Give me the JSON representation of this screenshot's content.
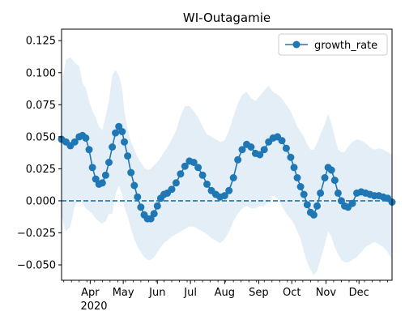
{
  "chart_data": {
    "type": "line",
    "title": "WI-Outagamie",
    "xlabel": "",
    "ylabel": "",
    "x_range": [
      "2020-03-06",
      "2020-12-31"
    ],
    "ylim": [
      -0.062,
      0.134
    ],
    "y_ticks": [
      -0.05,
      -0.025,
      0.0,
      0.025,
      0.05,
      0.075,
      0.1,
      0.125
    ],
    "y_tick_labels": [
      "−0.050",
      "−0.025",
      "0.000",
      "0.025",
      "0.050",
      "0.075",
      "0.100",
      "0.125"
    ],
    "x_ticks": [
      {
        "date": "2020-04-01",
        "label": "Apr"
      },
      {
        "date": "2020-05-01",
        "label": "May"
      },
      {
        "date": "2020-06-01",
        "label": "Jun"
      },
      {
        "date": "2020-07-01",
        "label": "Jul"
      },
      {
        "date": "2020-08-01",
        "label": "Aug"
      },
      {
        "date": "2020-09-01",
        "label": "Sep"
      },
      {
        "date": "2020-10-01",
        "label": "Oct"
      },
      {
        "date": "2020-11-01",
        "label": "Nov"
      },
      {
        "date": "2020-12-01",
        "label": "Dec"
      }
    ],
    "year_label": "2020",
    "grid": false,
    "legend_position": "top-right",
    "colors": {
      "line": "#1f77b4",
      "band": "#dbe8f4"
    },
    "reference_line": {
      "y": 0.0,
      "style": "dashed"
    },
    "series": [
      {
        "name": "growth_rate",
        "x": [
          "2020-03-06",
          "2020-03-10",
          "2020-03-14",
          "2020-03-18",
          "2020-03-22",
          "2020-03-25",
          "2020-03-28",
          "2020-03-31",
          "2020-04-03",
          "2020-04-06",
          "2020-04-09",
          "2020-04-12",
          "2020-04-15",
          "2020-04-18",
          "2020-04-21",
          "2020-04-24",
          "2020-04-27",
          "2020-04-30",
          "2020-05-02",
          "2020-05-05",
          "2020-05-08",
          "2020-05-11",
          "2020-05-14",
          "2020-05-17",
          "2020-05-20",
          "2020-05-23",
          "2020-05-26",
          "2020-05-29",
          "2020-06-01",
          "2020-06-04",
          "2020-06-07",
          "2020-06-10",
          "2020-06-14",
          "2020-06-18",
          "2020-06-22",
          "2020-06-26",
          "2020-06-30",
          "2020-07-04",
          "2020-07-08",
          "2020-07-12",
          "2020-07-16",
          "2020-07-20",
          "2020-07-24",
          "2020-07-28",
          "2020-08-01",
          "2020-08-05",
          "2020-08-09",
          "2020-08-13",
          "2020-08-17",
          "2020-08-21",
          "2020-08-25",
          "2020-08-29",
          "2020-09-02",
          "2020-09-06",
          "2020-09-10",
          "2020-09-14",
          "2020-09-18",
          "2020-09-22",
          "2020-09-26",
          "2020-09-30",
          "2020-10-03",
          "2020-10-06",
          "2020-10-09",
          "2020-10-12",
          "2020-10-15",
          "2020-10-18",
          "2020-10-21",
          "2020-10-24",
          "2020-10-27",
          "2020-10-31",
          "2020-11-03",
          "2020-11-06",
          "2020-11-09",
          "2020-11-12",
          "2020-11-15",
          "2020-11-18",
          "2020-11-21",
          "2020-11-25",
          "2020-11-29",
          "2020-12-03",
          "2020-12-07",
          "2020-12-11",
          "2020-12-15",
          "2020-12-19",
          "2020-12-23",
          "2020-12-27",
          "2020-12-31"
        ],
        "y": [
          0.048,
          0.046,
          0.043,
          0.046,
          0.05,
          0.051,
          0.049,
          0.04,
          0.026,
          0.017,
          0.013,
          0.014,
          0.02,
          0.03,
          0.042,
          0.053,
          0.058,
          0.054,
          0.046,
          0.035,
          0.022,
          0.012,
          0.003,
          -0.005,
          -0.011,
          -0.014,
          -0.014,
          -0.01,
          -0.004,
          0.002,
          0.005,
          0.006,
          0.009,
          0.014,
          0.021,
          0.027,
          0.031,
          0.03,
          0.026,
          0.02,
          0.013,
          0.008,
          0.005,
          0.003,
          0.004,
          0.008,
          0.018,
          0.032,
          0.04,
          0.044,
          0.042,
          0.037,
          0.036,
          0.04,
          0.046,
          0.049,
          0.05,
          0.047,
          0.041,
          0.034,
          0.026,
          0.018,
          0.011,
          0.005,
          -0.003,
          -0.009,
          -0.011,
          -0.004,
          0.006,
          0.018,
          0.026,
          0.024,
          0.016,
          0.006,
          0.0,
          -0.004,
          -0.005,
          -0.002,
          0.006,
          0.007,
          0.006,
          0.005,
          0.004,
          0.004,
          0.003,
          0.002,
          -0.001
        ]
      }
    ],
    "band": {
      "upper": [
        0.09,
        0.11,
        0.112,
        0.108,
        0.105,
        0.092,
        0.088,
        0.078,
        0.07,
        0.065,
        0.058,
        0.055,
        0.066,
        0.078,
        0.098,
        0.102,
        0.098,
        0.088,
        0.07,
        0.056,
        0.046,
        0.04,
        0.034,
        0.03,
        0.026,
        0.024,
        0.025,
        0.028,
        0.03,
        0.034,
        0.038,
        0.042,
        0.048,
        0.055,
        0.066,
        0.074,
        0.074,
        0.07,
        0.065,
        0.058,
        0.052,
        0.05,
        0.048,
        0.046,
        0.047,
        0.055,
        0.066,
        0.076,
        0.083,
        0.085,
        0.08,
        0.078,
        0.082,
        0.086,
        0.09,
        0.085,
        0.083,
        0.08,
        0.075,
        0.07,
        0.064,
        0.058,
        0.054,
        0.05,
        0.044,
        0.04,
        0.04,
        0.045,
        0.052,
        0.06,
        0.068,
        0.06,
        0.05,
        0.04,
        0.038,
        0.038,
        0.042,
        0.046,
        0.048,
        0.047,
        0.045,
        0.042,
        0.04,
        0.041,
        0.04,
        0.038,
        0.036
      ],
      "lower": [
        -0.012,
        -0.024,
        -0.02,
        -0.004,
        0.002,
        -0.002,
        -0.006,
        -0.008,
        -0.01,
        -0.014,
        -0.016,
        -0.018,
        -0.016,
        -0.01,
        -0.01,
        0.005,
        0.012,
        0.005,
        -0.005,
        -0.012,
        -0.022,
        -0.03,
        -0.036,
        -0.04,
        -0.044,
        -0.046,
        -0.046,
        -0.044,
        -0.04,
        -0.036,
        -0.033,
        -0.031,
        -0.028,
        -0.026,
        -0.024,
        -0.022,
        -0.02,
        -0.02,
        -0.022,
        -0.024,
        -0.026,
        -0.029,
        -0.031,
        -0.033,
        -0.03,
        -0.024,
        -0.016,
        -0.01,
        -0.006,
        -0.004,
        -0.006,
        -0.006,
        -0.004,
        -0.004,
        0.0,
        0.004,
        0.002,
        -0.004,
        -0.01,
        -0.014,
        -0.018,
        -0.024,
        -0.03,
        -0.04,
        -0.048,
        -0.054,
        -0.058,
        -0.055,
        -0.046,
        -0.034,
        -0.024,
        -0.028,
        -0.036,
        -0.042,
        -0.046,
        -0.048,
        -0.048,
        -0.046,
        -0.044,
        -0.04,
        -0.036,
        -0.034,
        -0.032,
        -0.034,
        -0.036,
        -0.04,
        -0.046
      ]
    }
  }
}
